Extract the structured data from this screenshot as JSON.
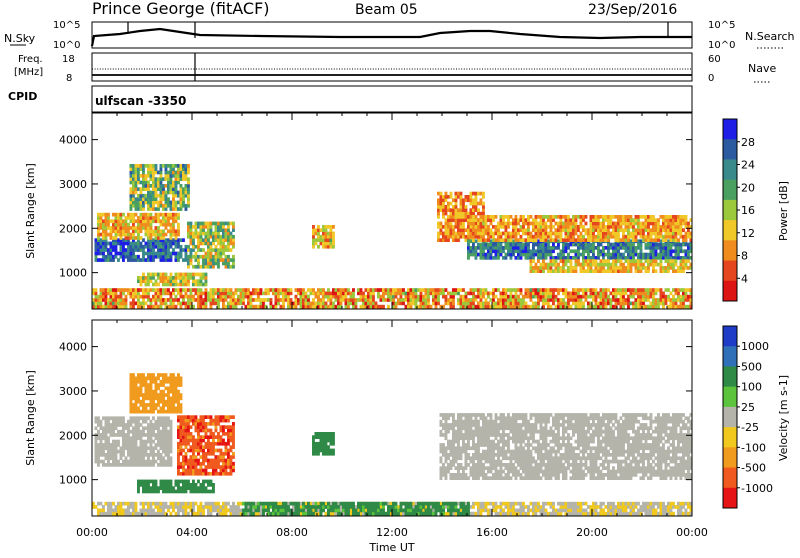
{
  "header": {
    "station": "Prince George (fitACF)",
    "beam": "Beam 05",
    "date": "23/Sep/2016"
  },
  "top_panels": {
    "nsky_label": "N.Sky",
    "nsky_ticks": [
      "10^5",
      "10^0"
    ],
    "nsearch_label": "N.Search",
    "nsearch_ticks": [
      "10^5",
      "10^0"
    ],
    "freq_label": "Freq.",
    "freq_unit": "[MHz]",
    "freq_ticks": [
      "18",
      "8"
    ],
    "nave_label": "Nave",
    "nave_ticks": [
      "60",
      "0"
    ],
    "cpid_label": "CPID",
    "cpid_value": "ulfscan -3350"
  },
  "x_axis": {
    "label": "Time UT",
    "ticks": [
      "00:00",
      "04:00",
      "08:00",
      "12:00",
      "16:00",
      "20:00",
      "00:00"
    ]
  },
  "colors": {
    "power_scale": [
      "#1e1ee6",
      "#2c5aa0",
      "#3a8a8c",
      "#4aa060",
      "#9cc83c",
      "#f0c828",
      "#f08c1e",
      "#e6461e",
      "#dc1414"
    ],
    "velocity_scale": [
      "#1e3cc8",
      "#3070b8",
      "#2e8a46",
      "#5cc43c",
      "#b4b4aa",
      "#f0c81e",
      "#f09a1e",
      "#f05a1e",
      "#e61414"
    ]
  },
  "chart_data": [
    {
      "type": "heatmap",
      "panel": "power",
      "ylabel": "Slant Range [km]",
      "yticks": [
        1000,
        2000,
        3000,
        4000
      ],
      "ylim": [
        180,
        4600
      ],
      "xlim_hours": [
        0,
        24
      ],
      "colorbar_label": "Power [dB]",
      "colorbar_ticks": [
        4,
        8,
        12,
        16,
        20,
        24,
        28
      ],
      "colorbar_range": [
        0,
        32
      ],
      "regions": [
        {
          "t0": 0.0,
          "t1": 24.0,
          "r0": 200,
          "r1": 650,
          "value": 10,
          "spread": 8
        },
        {
          "t0": 0.1,
          "t1": 3.8,
          "r0": 1250,
          "r1": 1750,
          "value": 26,
          "spread": 5
        },
        {
          "t0": 0.2,
          "t1": 3.5,
          "r0": 1750,
          "r1": 2300,
          "value": 11,
          "spread": 5
        },
        {
          "t0": 1.5,
          "t1": 3.9,
          "r0": 2400,
          "r1": 3400,
          "value": 18,
          "spread": 8
        },
        {
          "t0": 3.8,
          "t1": 5.6,
          "r0": 1100,
          "r1": 2100,
          "value": 16,
          "spread": 8
        },
        {
          "t0": 1.8,
          "t1": 4.6,
          "r0": 700,
          "r1": 950,
          "value": 14,
          "spread": 5
        },
        {
          "t0": 8.8,
          "t1": 9.6,
          "r0": 1550,
          "r1": 2050,
          "value": 12,
          "spread": 6
        },
        {
          "t0": 13.8,
          "t1": 15.6,
          "r0": 1700,
          "r1": 2800,
          "value": 9,
          "spread": 5
        },
        {
          "t0": 15.0,
          "t1": 24.0,
          "r0": 1300,
          "r1": 1700,
          "value": 24,
          "spread": 6
        },
        {
          "t0": 15.0,
          "t1": 24.0,
          "r0": 1700,
          "r1": 2300,
          "value": 10,
          "spread": 5
        },
        {
          "t0": 17.5,
          "t1": 24.0,
          "r0": 1000,
          "r1": 1300,
          "value": 12,
          "spread": 5
        }
      ]
    },
    {
      "type": "heatmap",
      "panel": "velocity",
      "ylabel": "Slant Range [km]",
      "yticks": [
        1000,
        2000,
        3000,
        4000
      ],
      "ylim": [
        180,
        4600
      ],
      "xlim_hours": [
        0,
        24
      ],
      "colorbar_label": "Velocity [m s-1]",
      "colorbar_ticks": [
        "1000",
        "500",
        "100",
        "25",
        "-25",
        "-100",
        "-500",
        "-1000"
      ],
      "regions": [
        {
          "t0": 0.0,
          "t1": 24.0,
          "r0": 200,
          "r1": 500,
          "value": "-25",
          "spread": 1
        },
        {
          "t0": 0.1,
          "t1": 3.2,
          "r0": 1300,
          "r1": 2400,
          "value": "0",
          "spread": 0
        },
        {
          "t0": 1.5,
          "t1": 3.6,
          "r0": 2500,
          "r1": 3400,
          "value": "-300",
          "spread": 1
        },
        {
          "t0": 3.4,
          "t1": 5.6,
          "r0": 1100,
          "r1": 2400,
          "value": "-800",
          "spread": 1
        },
        {
          "t0": 1.8,
          "t1": 4.8,
          "r0": 700,
          "r1": 950,
          "value": "200",
          "spread": 1
        },
        {
          "t0": 8.8,
          "t1": 9.6,
          "r0": 1550,
          "r1": 2050,
          "value": "200",
          "spread": 1
        },
        {
          "t0": 13.9,
          "t1": 24.0,
          "r0": 1000,
          "r1": 2500,
          "value": "0",
          "spread": 0
        },
        {
          "t0": 6.0,
          "t1": 15.0,
          "r0": 200,
          "r1": 500,
          "value": "150",
          "spread": 1
        }
      ]
    }
  ]
}
